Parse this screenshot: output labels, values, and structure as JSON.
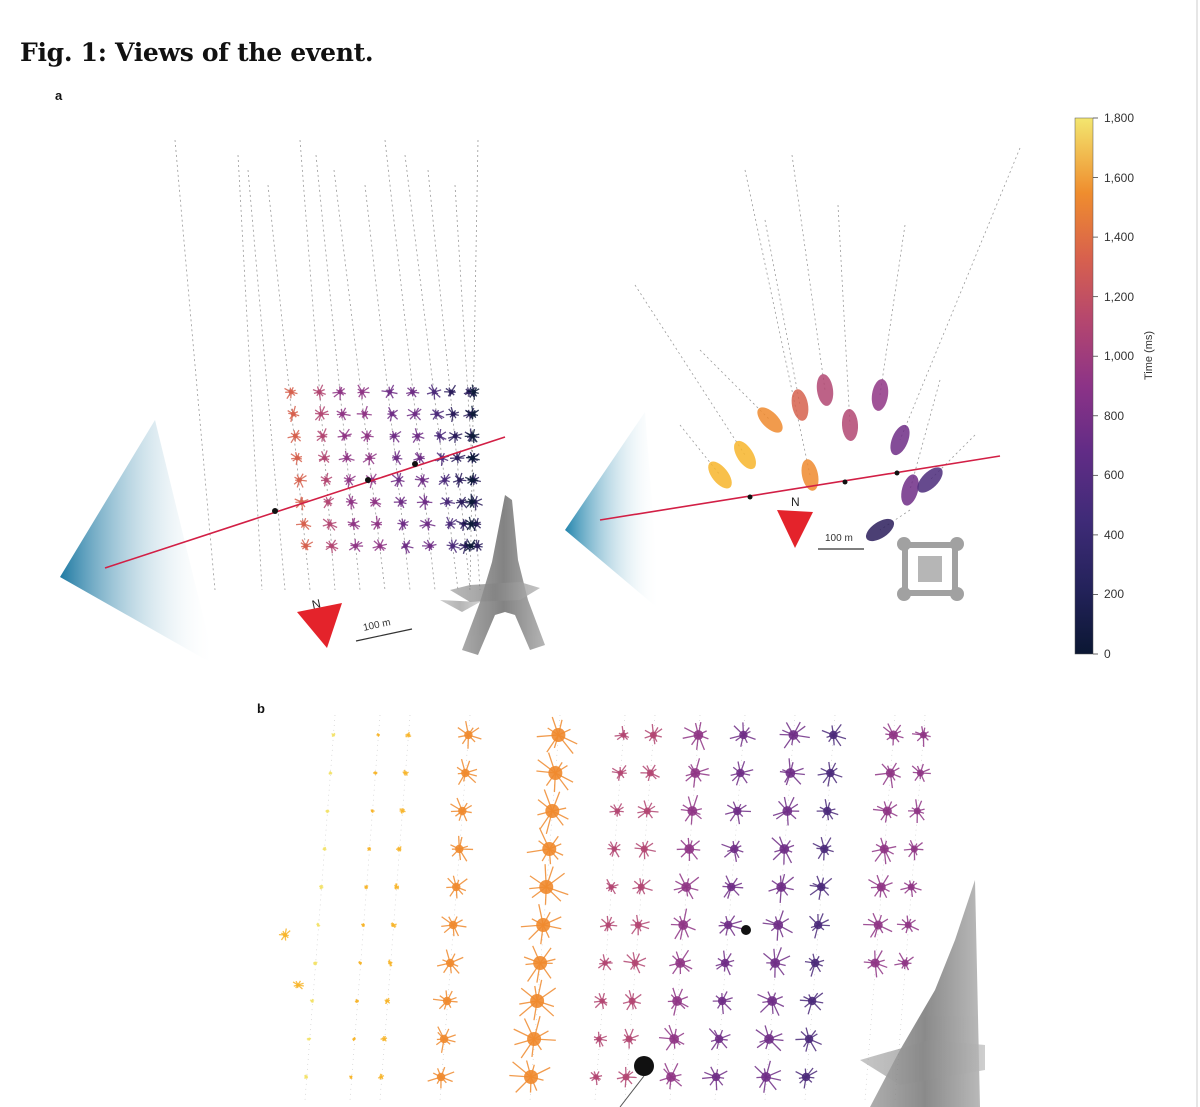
{
  "figure": {
    "title": "Fig. 1: Views of the event.",
    "panel_a_label": "a",
    "panel_b_label": "b"
  },
  "colorbar": {
    "title": "Time (ms)",
    "ticks": [
      "1,800",
      "1,600",
      "1,400",
      "1,200",
      "1,000",
      "800",
      "600",
      "400",
      "200",
      "0"
    ],
    "colormap": [
      "#0d1b3a",
      "#2b1d5c",
      "#4b2a7a",
      "#6f2d86",
      "#8f3585",
      "#b24672",
      "#d6614e",
      "#ef8a2e",
      "#f7b52b",
      "#f3e26a"
    ]
  },
  "panel_a": {
    "left_view": {
      "north": "N",
      "scale_bar": "100 m"
    },
    "right_view": {
      "north": "N",
      "scale_bar": "100 m"
    }
  },
  "colors": {
    "trajectory": "#d21f45",
    "north_arrow": "#e4232b",
    "pyramid": "#2a8cb3",
    "tower": "#777777"
  }
}
